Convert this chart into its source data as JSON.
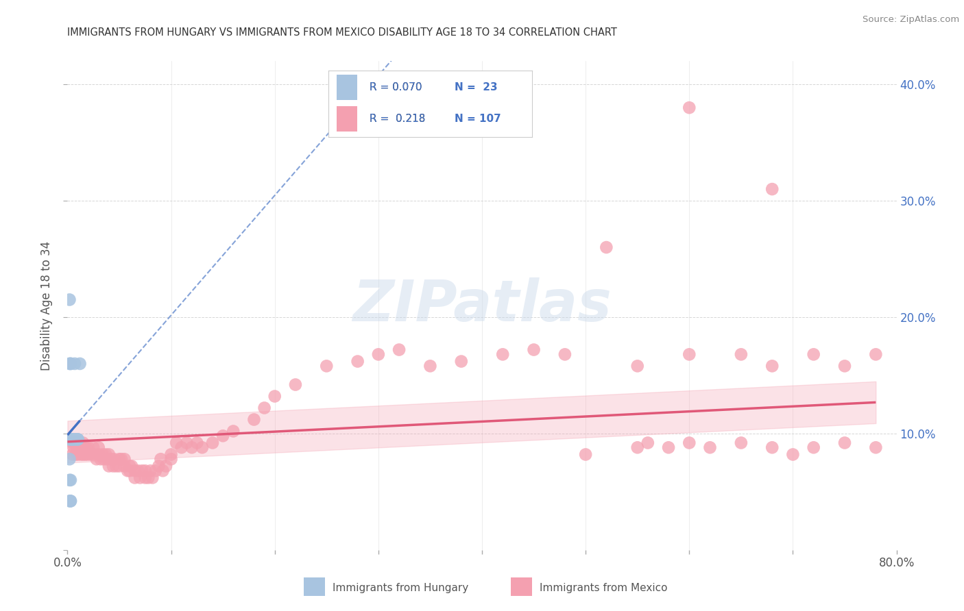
{
  "title": "IMMIGRANTS FROM HUNGARY VS IMMIGRANTS FROM MEXICO DISABILITY AGE 18 TO 34 CORRELATION CHART",
  "source": "Source: ZipAtlas.com",
  "ylabel": "Disability Age 18 to 34",
  "xlim": [
    0.0,
    0.8
  ],
  "ylim": [
    0.0,
    0.42
  ],
  "hungary_color": "#a8c4e0",
  "mexico_color": "#f4a0b0",
  "hungary_line_color": "#4472c4",
  "mexico_line_color": "#e05878",
  "grid_color": "#cccccc",
  "background_color": "#ffffff",
  "watermark_text": "ZIPatlas",
  "legend_r1": "R = 0.070",
  "legend_n1": "N =  23",
  "legend_r2": "R =  0.218",
  "legend_n2": "N = 107",
  "hungary_x": [
    0.002,
    0.002,
    0.003,
    0.003,
    0.003,
    0.004,
    0.004,
    0.005,
    0.005,
    0.006,
    0.007,
    0.008,
    0.009,
    0.01,
    0.01,
    0.012,
    0.002,
    0.002,
    0.003,
    0.003,
    0.002,
    0.003,
    0.002
  ],
  "hungary_y": [
    0.215,
    0.16,
    0.16,
    0.16,
    0.095,
    0.095,
    0.095,
    0.095,
    0.095,
    0.095,
    0.16,
    0.095,
    0.095,
    0.095,
    0.095,
    0.16,
    0.095,
    0.06,
    0.06,
    0.042,
    0.042,
    0.042,
    0.078
  ],
  "mexico_x": [
    0.005,
    0.005,
    0.006,
    0.007,
    0.008,
    0.008,
    0.009,
    0.01,
    0.01,
    0.011,
    0.012,
    0.013,
    0.014,
    0.015,
    0.015,
    0.016,
    0.017,
    0.018,
    0.019,
    0.02,
    0.022,
    0.025,
    0.025,
    0.028,
    0.03,
    0.03,
    0.032,
    0.034,
    0.035,
    0.037,
    0.038,
    0.04,
    0.04,
    0.042,
    0.044,
    0.045,
    0.047,
    0.05,
    0.05,
    0.052,
    0.055,
    0.055,
    0.058,
    0.06,
    0.06,
    0.062,
    0.065,
    0.065,
    0.068,
    0.07,
    0.072,
    0.075,
    0.075,
    0.078,
    0.08,
    0.082,
    0.085,
    0.088,
    0.09,
    0.092,
    0.095,
    0.1,
    0.1,
    0.105,
    0.11,
    0.115,
    0.12,
    0.125,
    0.13,
    0.14,
    0.15,
    0.16,
    0.18,
    0.19,
    0.2,
    0.22,
    0.25,
    0.28,
    0.3,
    0.32,
    0.35,
    0.38,
    0.42,
    0.45,
    0.48,
    0.5,
    0.52,
    0.55,
    0.56,
    0.58,
    0.6,
    0.62,
    0.65,
    0.68,
    0.7,
    0.72,
    0.75,
    0.78,
    0.55,
    0.6,
    0.65,
    0.68,
    0.72,
    0.75,
    0.78,
    0.6,
    0.68
  ],
  "mexico_y": [
    0.092,
    0.082,
    0.088,
    0.092,
    0.082,
    0.092,
    0.088,
    0.082,
    0.092,
    0.088,
    0.092,
    0.082,
    0.088,
    0.082,
    0.092,
    0.088,
    0.082,
    0.088,
    0.082,
    0.088,
    0.082,
    0.088,
    0.082,
    0.078,
    0.082,
    0.088,
    0.078,
    0.082,
    0.078,
    0.082,
    0.078,
    0.072,
    0.082,
    0.078,
    0.072,
    0.078,
    0.072,
    0.078,
    0.072,
    0.078,
    0.072,
    0.078,
    0.068,
    0.072,
    0.068,
    0.072,
    0.068,
    0.062,
    0.068,
    0.062,
    0.068,
    0.062,
    0.068,
    0.062,
    0.068,
    0.062,
    0.068,
    0.072,
    0.078,
    0.068,
    0.072,
    0.078,
    0.082,
    0.092,
    0.088,
    0.092,
    0.088,
    0.092,
    0.088,
    0.092,
    0.098,
    0.102,
    0.112,
    0.122,
    0.132,
    0.142,
    0.158,
    0.162,
    0.168,
    0.172,
    0.158,
    0.162,
    0.168,
    0.172,
    0.168,
    0.082,
    0.26,
    0.088,
    0.092,
    0.088,
    0.092,
    0.088,
    0.092,
    0.088,
    0.082,
    0.088,
    0.092,
    0.088,
    0.158,
    0.168,
    0.168,
    0.158,
    0.168,
    0.158,
    0.168,
    0.38,
    0.31
  ]
}
